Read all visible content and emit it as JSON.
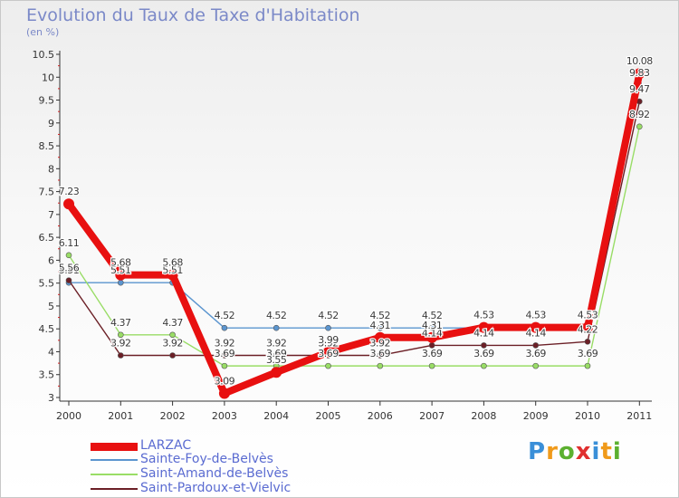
{
  "title": "Evolution du Taux de Taxe d'Habitation",
  "unit_label": "(en %)",
  "logo": {
    "text": "Proxiti",
    "colors": [
      "#3a8fd8",
      "#f09a1a",
      "#5cb030",
      "#e02f2f",
      "#3a8fd8",
      "#f09a1a",
      "#5cb030"
    ]
  },
  "chart_data": {
    "type": "line",
    "title": "Evolution du Taux de Taxe d'Habitation",
    "ylabel": "(en %)",
    "xlabel": "",
    "categories": [
      "2000",
      "2001",
      "2002",
      "2003",
      "2004",
      "2005",
      "2006",
      "2007",
      "2008",
      "2009",
      "2010",
      "2011"
    ],
    "ylim": [
      3,
      10.5
    ],
    "yticks": [
      "3",
      "3.5",
      "4",
      "4.5",
      "5",
      "5.5",
      "6",
      "6.5",
      "7",
      "7.5",
      "8",
      "8.5",
      "9",
      "9.5",
      "10",
      "10.5"
    ],
    "grid": false,
    "legend_position": "bottom-left",
    "series": [
      {
        "name": "LARZAC",
        "color": "#e81010",
        "values": [
          7.23,
          5.68,
          5.68,
          3.09,
          3.55,
          3.99,
          4.31,
          4.31,
          4.53,
          4.53,
          4.53,
          10.08
        ],
        "labels": [
          "7.23",
          "5.68",
          "5.68",
          "3.09",
          "3.55",
          "3.99",
          "4.31",
          "4.31",
          "4.53",
          "4.53",
          "4.53",
          "10.08"
        ]
      },
      {
        "name": "Sainte-Foy-de-Belvès",
        "color": "#5b95cf",
        "values": [
          5.51,
          5.51,
          5.51,
          4.52,
          4.52,
          4.52,
          4.52,
          4.52,
          4.52,
          4.52,
          4.52,
          9.83
        ],
        "labels": [
          "5.51",
          "5.51",
          "5.51",
          "4.52",
          "4.52",
          "4.52",
          "4.52",
          "4.52",
          "4.52",
          "4.52",
          "4.52",
          "9.83"
        ]
      },
      {
        "name": "Saint-Amand-de-Belvès",
        "color": "#99dd66",
        "values": [
          6.11,
          4.37,
          4.37,
          3.69,
          3.69,
          3.69,
          3.69,
          3.69,
          3.69,
          3.69,
          3.69,
          8.92
        ],
        "labels": [
          "6.11",
          "4.37",
          "4.37",
          "3.69",
          "3.69",
          "3.69",
          "3.69",
          "3.69",
          "3.69",
          "3.69",
          "3.69",
          "8.92"
        ]
      },
      {
        "name": "Saint-Pardoux-et-Vielvic",
        "color": "#6b1f26",
        "values": [
          5.56,
          3.92,
          3.92,
          3.92,
          3.92,
          3.92,
          3.92,
          4.14,
          4.14,
          4.14,
          4.22,
          9.47
        ],
        "labels": [
          "5.56",
          "3.92",
          "3.92",
          "3.92",
          "3.92",
          "3.92",
          "3.92",
          "4.14",
          "4.14",
          "4.14",
          "4.22",
          "9.47"
        ]
      }
    ]
  }
}
